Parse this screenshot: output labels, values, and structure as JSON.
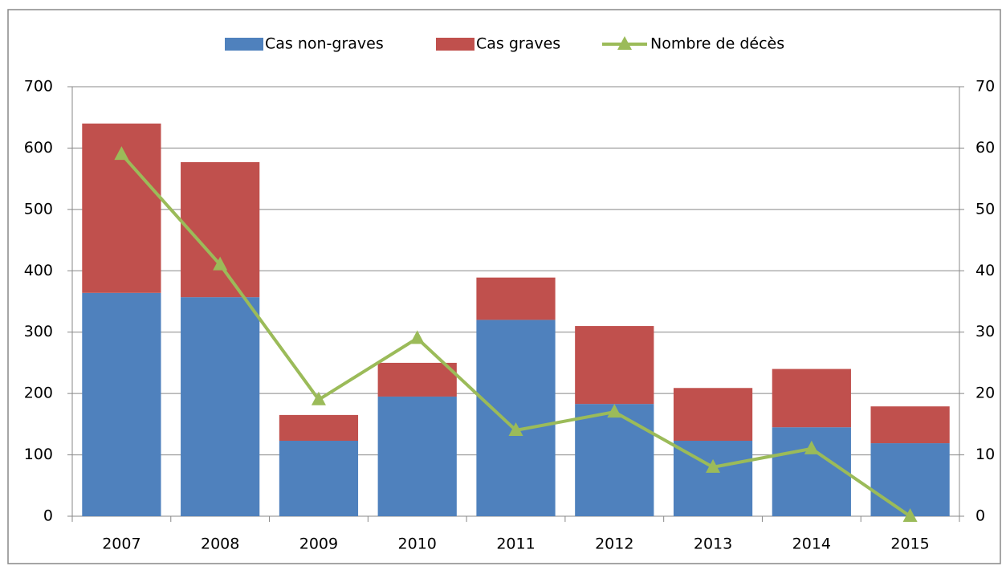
{
  "chart_data": {
    "type": "bar",
    "stacked": true,
    "categories": [
      "2007",
      "2008",
      "2009",
      "2010",
      "2011",
      "2012",
      "2013",
      "2014",
      "2015"
    ],
    "series": [
      {
        "name": "Cas non-graves",
        "color": "#4f81bd",
        "type": "bar",
        "values": [
          364,
          357,
          123,
          195,
          320,
          183,
          123,
          145,
          119
        ]
      },
      {
        "name": "Cas graves",
        "color": "#c0504d",
        "type": "bar",
        "values": [
          276,
          220,
          42,
          55,
          69,
          127,
          86,
          95,
          60
        ]
      },
      {
        "name": "Nombre de décès",
        "color": "#9bbb59",
        "type": "line",
        "axis": "y2",
        "values": [
          59,
          41,
          19,
          29,
          14,
          17,
          8,
          11,
          0
        ]
      }
    ],
    "ylim": [
      0,
      700
    ],
    "yticks": [
      0,
      100,
      200,
      300,
      400,
      500,
      600,
      700
    ],
    "y2lim": [
      0,
      70
    ],
    "y2ticks": [
      0,
      10,
      20,
      30,
      40,
      50,
      60,
      70
    ],
    "grid": true,
    "legend": "top"
  }
}
